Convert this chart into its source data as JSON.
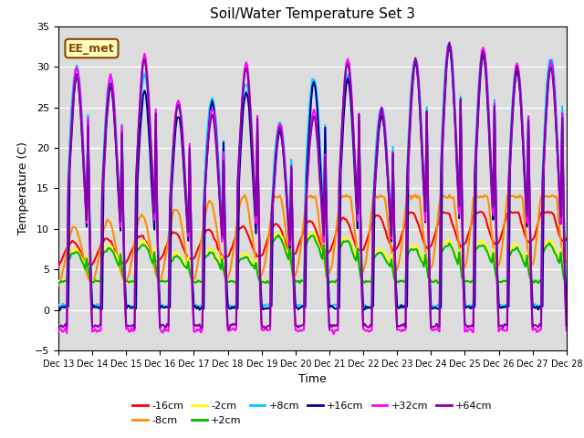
{
  "title": "Soil/Water Temperature Set 3",
  "xlabel": "Time",
  "ylabel": "Temperature (C)",
  "ylim": [
    -5,
    35
  ],
  "xlim": [
    0,
    360
  ],
  "background_color": "#dcdcdc",
  "annotation_text": "EE_met",
  "annotation_bg": "#ffffc0",
  "annotation_border": "#8b4500",
  "x_tick_labels": [
    "Dec 13",
    "Dec 14",
    "Dec 15",
    "Dec 16",
    "Dec 17",
    "Dec 18",
    "Dec 19",
    "Dec 20",
    "Dec 21",
    "Dec 22",
    "Dec 23",
    "Dec 24",
    "Dec 25",
    "Dec 26",
    "Dec 27",
    "Dec 28"
  ],
  "x_tick_positions": [
    0,
    24,
    48,
    72,
    96,
    120,
    144,
    168,
    192,
    216,
    240,
    264,
    288,
    312,
    336,
    360
  ],
  "series": [
    {
      "label": "-16cm",
      "color": "#ff0000",
      "lw": 1.5
    },
    {
      "label": "-8cm",
      "color": "#ff8c00",
      "lw": 1.5
    },
    {
      "label": "-2cm",
      "color": "#ffff00",
      "lw": 1.5
    },
    {
      "label": "+2cm",
      "color": "#00bb00",
      "lw": 1.5
    },
    {
      "label": "+8cm",
      "color": "#00ccff",
      "lw": 1.5
    },
    {
      "label": "+16cm",
      "color": "#000090",
      "lw": 1.5
    },
    {
      "label": "+32cm",
      "color": "#ff00ff",
      "lw": 1.5
    },
    {
      "label": "+64cm",
      "color": "#8800aa",
      "lw": 1.5
    }
  ],
  "grid_color": "#ffffff",
  "n_hours": 361
}
